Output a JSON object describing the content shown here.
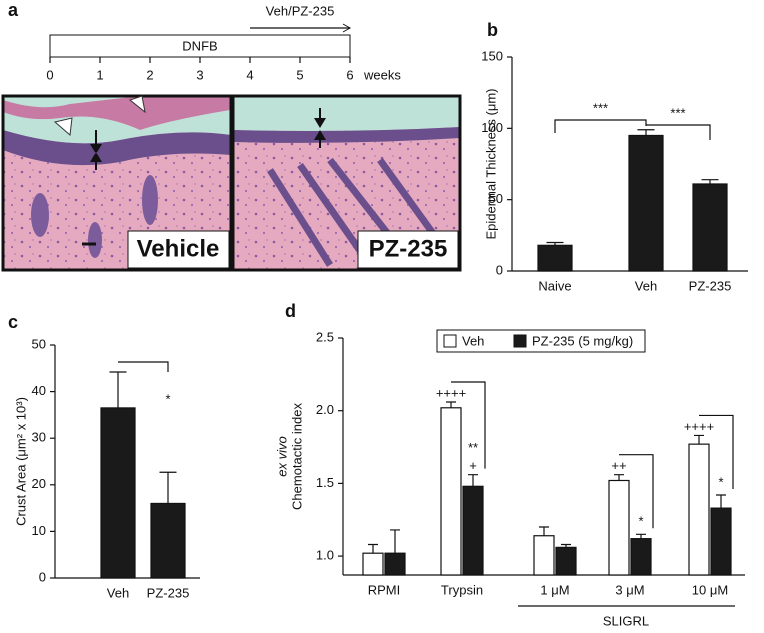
{
  "panel_a": {
    "label": "a",
    "timeline": {
      "ticks": [
        0,
        1,
        2,
        3,
        4,
        5,
        6
      ],
      "unit": "weeks",
      "bar_label": "DNFB",
      "arrow_label": "Veh/PZ-235"
    },
    "images": [
      {
        "label": "Vehicle"
      },
      {
        "label": "PZ-235"
      }
    ]
  },
  "chart_data": [
    {
      "type": "bar",
      "label": "b",
      "y_label": "Epidermal Thickness (μm)",
      "categories": [
        "Naive",
        "Veh",
        "PZ-235"
      ],
      "values": [
        18,
        95,
        61
      ],
      "errors": [
        2,
        4,
        3
      ],
      "color": "#1a1a1a",
      "ylim": [
        0,
        150
      ],
      "yticks": [
        0,
        50,
        100,
        150
      ],
      "annotations": [
        "***",
        "***"
      ]
    },
    {
      "type": "bar",
      "label": "c",
      "y_label": "Crust Area (μm² x 10³)",
      "categories": [
        "Veh",
        "PZ-235"
      ],
      "values": [
        36.5,
        16
      ],
      "errors": [
        7.7,
        6.7
      ],
      "color": "#1a1a1a",
      "ylim": [
        0,
        50
      ],
      "yticks": [
        0,
        10,
        20,
        30,
        40,
        50
      ],
      "annotations": [
        "*"
      ]
    },
    {
      "type": "grouped_bar",
      "label": "d",
      "y_label_italic": "ex vivo",
      "y_label": "Chemotactic index",
      "categories": [
        "RPMI",
        "Trypsin",
        "1 μM",
        "3 μM",
        "10 μM"
      ],
      "group_label": "SLIGRL",
      "series": [
        {
          "name": "Veh",
          "color": "#ffffff",
          "values": [
            1.02,
            2.02,
            1.14,
            1.52,
            1.77
          ],
          "errors": [
            0.06,
            0.04,
            0.06,
            0.04,
            0.06
          ],
          "marks": [
            null,
            "++++",
            null,
            "++",
            "++++"
          ]
        },
        {
          "name": "PZ-235 (5 mg/kg)",
          "color": "#1a1a1a",
          "values": [
            1.02,
            1.48,
            1.06,
            1.12,
            1.33
          ],
          "errors": [
            0.16,
            0.08,
            0.02,
            0.03,
            0.09
          ],
          "marks": [
            null,
            "+",
            null,
            null,
            null
          ]
        }
      ],
      "comparisons": [
        null,
        "**",
        null,
        "*",
        "*"
      ],
      "ylim": [
        0.87,
        2.5
      ],
      "yticks": [
        {
          "value": 1,
          "label": "1.0"
        },
        {
          "value": 1.5,
          "label": "1.5"
        },
        {
          "value": 2,
          "label": "2.0"
        },
        {
          "value": 2.5,
          "label": "2.5"
        }
      ]
    }
  ]
}
